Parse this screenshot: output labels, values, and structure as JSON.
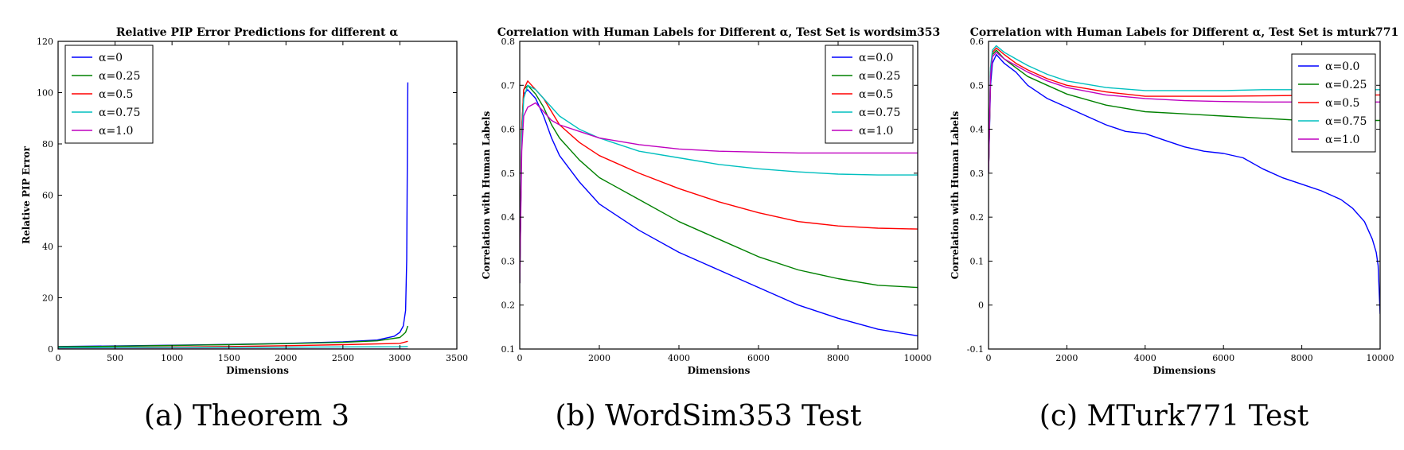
{
  "chart_data": [
    {
      "type": "line",
      "title": "Relative PIP Error Predictions for different α",
      "xlabel": "Dimensions",
      "ylabel": "Relative PIP Error",
      "xlim": [
        0,
        3500
      ],
      "ylim": [
        0,
        120
      ],
      "xticks": [
        0,
        500,
        1000,
        1500,
        2000,
        2500,
        3000,
        3500
      ],
      "yticks": [
        0,
        20,
        40,
        60,
        80,
        100,
        120
      ],
      "legend_position": "top-left",
      "caption": "(a) Theorem 3",
      "series": [
        {
          "name": "α=0",
          "color": "#0000ff",
          "x": [
            0,
            500,
            1000,
            1500,
            2000,
            2500,
            2800,
            2950,
            3000,
            3030,
            3050,
            3060,
            3065,
            3070
          ],
          "y": [
            1,
            1.2,
            1.5,
            1.8,
            2.2,
            2.8,
            3.5,
            5,
            6.5,
            9,
            15,
            35,
            70,
            104
          ]
        },
        {
          "name": "α=0.25",
          "color": "#008000",
          "x": [
            0,
            500,
            1000,
            1500,
            2000,
            2500,
            2800,
            3000,
            3050,
            3070
          ],
          "y": [
            0.9,
            1.1,
            1.4,
            1.7,
            2.1,
            2.6,
            3.2,
            4.5,
            6.5,
            9
          ]
        },
        {
          "name": "α=0.5",
          "color": "#ff0000",
          "x": [
            0,
            500,
            1000,
            1500,
            2000,
            2500,
            3000,
            3070
          ],
          "y": [
            0.5,
            0.6,
            0.8,
            1,
            1.3,
            1.7,
            2.2,
            3
          ]
        },
        {
          "name": "α=0.75",
          "color": "#00bfbf",
          "x": [
            0,
            1000,
            2000,
            3000,
            3070
          ],
          "y": [
            0.5,
            0.6,
            0.7,
            0.9,
            1
          ]
        },
        {
          "name": "α=1.0",
          "color": "#bf00bf",
          "x": [
            0,
            1000,
            2000,
            3000,
            3070
          ],
          "y": [
            0,
            0,
            0,
            0,
            0
          ]
        }
      ]
    },
    {
      "type": "line",
      "title": "Correlation with Human Labels for Different α, Test Set is wordsim353",
      "xlabel": "Dimensions",
      "ylabel": "Correlation with Human Labels",
      "xlim": [
        0,
        10000
      ],
      "ylim": [
        0.1,
        0.8
      ],
      "xticks": [
        0,
        2000,
        4000,
        6000,
        8000,
        10000
      ],
      "yticks": [
        0.1,
        0.2,
        0.3,
        0.4,
        0.5,
        0.6,
        0.7,
        0.8
      ],
      "legend_position": "top-right",
      "caption": "(b) WordSim353 Test",
      "series": [
        {
          "name": "α=0.0",
          "color": "#0000ff",
          "x": [
            0,
            50,
            100,
            200,
            400,
            600,
            800,
            1000,
            1500,
            2000,
            3000,
            4000,
            5000,
            6000,
            7000,
            8000,
            9000,
            10000
          ],
          "y": [
            0.25,
            0.6,
            0.68,
            0.69,
            0.67,
            0.63,
            0.58,
            0.54,
            0.48,
            0.43,
            0.37,
            0.32,
            0.28,
            0.24,
            0.2,
            0.17,
            0.145,
            0.13
          ]
        },
        {
          "name": "α=0.25",
          "color": "#008000",
          "x": [
            0,
            50,
            100,
            200,
            400,
            600,
            800,
            1000,
            1500,
            2000,
            3000,
            4000,
            5000,
            6000,
            7000,
            8000,
            9000,
            10000
          ],
          "y": [
            0.25,
            0.6,
            0.69,
            0.7,
            0.68,
            0.65,
            0.61,
            0.58,
            0.53,
            0.49,
            0.44,
            0.39,
            0.35,
            0.31,
            0.28,
            0.26,
            0.245,
            0.24
          ]
        },
        {
          "name": "α=0.5",
          "color": "#ff0000",
          "x": [
            0,
            50,
            100,
            200,
            400,
            600,
            800,
            1000,
            1500,
            2000,
            3000,
            4000,
            5000,
            6000,
            7000,
            8000,
            9000,
            10000
          ],
          "y": [
            0.25,
            0.6,
            0.69,
            0.71,
            0.69,
            0.67,
            0.64,
            0.61,
            0.57,
            0.54,
            0.5,
            0.465,
            0.435,
            0.41,
            0.39,
            0.38,
            0.375,
            0.373
          ]
        },
        {
          "name": "α=0.75",
          "color": "#00bfbf",
          "x": [
            0,
            50,
            100,
            200,
            400,
            600,
            800,
            1000,
            1500,
            2000,
            3000,
            4000,
            5000,
            6000,
            7000,
            8000,
            9000,
            10000
          ],
          "y": [
            0.25,
            0.58,
            0.67,
            0.7,
            0.69,
            0.67,
            0.65,
            0.63,
            0.6,
            0.58,
            0.55,
            0.535,
            0.52,
            0.51,
            0.503,
            0.498,
            0.496,
            0.496
          ]
        },
        {
          "name": "α=1.0",
          "color": "#bf00bf",
          "x": [
            0,
            50,
            100,
            200,
            400,
            600,
            800,
            1000,
            1500,
            2000,
            3000,
            4000,
            5000,
            6000,
            7000,
            8000,
            9000,
            10000
          ],
          "y": [
            0.25,
            0.55,
            0.63,
            0.65,
            0.66,
            0.64,
            0.62,
            0.61,
            0.595,
            0.58,
            0.565,
            0.555,
            0.55,
            0.548,
            0.546,
            0.546,
            0.546,
            0.546
          ]
        }
      ]
    },
    {
      "type": "line",
      "title": "Correlation with Human Labels for Different α, Test Set is mturk771",
      "xlabel": "Dimensions",
      "ylabel": "Correlation with Human Labels",
      "xlim": [
        0,
        10000
      ],
      "ylim": [
        -0.1,
        0.6
      ],
      "xticks": [
        0,
        2000,
        4000,
        6000,
        8000,
        10000
      ],
      "yticks": [
        -0.1,
        0.0,
        0.1,
        0.2,
        0.3,
        0.4,
        0.5,
        0.6
      ],
      "legend_position": "top-right",
      "caption": "(c) MTurk771 Test",
      "series": [
        {
          "name": "α=0.0",
          "color": "#0000ff",
          "x": [
            0,
            50,
            100,
            200,
            400,
            700,
            1000,
            1500,
            2000,
            2500,
            3000,
            3500,
            4000,
            4500,
            5000,
            5500,
            6000,
            6500,
            7000,
            7500,
            8000,
            8500,
            9000,
            9300,
            9600,
            9800,
            9900,
            9950,
            10000
          ],
          "y": [
            0.3,
            0.5,
            0.55,
            0.57,
            0.55,
            0.53,
            0.5,
            0.47,
            0.45,
            0.43,
            0.41,
            0.395,
            0.39,
            0.375,
            0.36,
            0.35,
            0.345,
            0.335,
            0.31,
            0.29,
            0.275,
            0.26,
            0.24,
            0.22,
            0.19,
            0.15,
            0.12,
            0.09,
            -0.02
          ]
        },
        {
          "name": "α=0.25",
          "color": "#008000",
          "x": [
            0,
            50,
            100,
            200,
            400,
            700,
            1000,
            1500,
            2000,
            3000,
            4000,
            5000,
            6000,
            7000,
            8000,
            9000,
            10000
          ],
          "y": [
            0.3,
            0.52,
            0.57,
            0.58,
            0.56,
            0.54,
            0.52,
            0.5,
            0.48,
            0.455,
            0.44,
            0.435,
            0.43,
            0.425,
            0.42,
            0.42,
            0.42
          ]
        },
        {
          "name": "α=0.5",
          "color": "#ff0000",
          "x": [
            0,
            50,
            100,
            200,
            400,
            700,
            1000,
            1500,
            2000,
            3000,
            4000,
            5000,
            6000,
            7000,
            8000,
            9000,
            10000
          ],
          "y": [
            0.3,
            0.53,
            0.575,
            0.585,
            0.57,
            0.55,
            0.535,
            0.515,
            0.5,
            0.485,
            0.475,
            0.475,
            0.475,
            0.476,
            0.477,
            0.477,
            0.478
          ]
        },
        {
          "name": "α=0.75",
          "color": "#00bfbf",
          "x": [
            0,
            50,
            100,
            200,
            400,
            700,
            1000,
            1500,
            2000,
            3000,
            4000,
            5000,
            6000,
            7000,
            8000,
            9000,
            10000
          ],
          "y": [
            0.3,
            0.54,
            0.58,
            0.59,
            0.575,
            0.56,
            0.545,
            0.525,
            0.51,
            0.495,
            0.488,
            0.488,
            0.488,
            0.49,
            0.49,
            0.49,
            0.49
          ]
        },
        {
          "name": "α=1.0",
          "color": "#bf00bf",
          "x": [
            0,
            50,
            100,
            200,
            400,
            700,
            1000,
            1500,
            2000,
            3000,
            4000,
            5000,
            6000,
            7000,
            8000,
            9000,
            10000
          ],
          "y": [
            0.3,
            0.52,
            0.565,
            0.575,
            0.56,
            0.545,
            0.53,
            0.51,
            0.495,
            0.478,
            0.47,
            0.465,
            0.463,
            0.462,
            0.462,
            0.462,
            0.462
          ]
        }
      ]
    }
  ]
}
